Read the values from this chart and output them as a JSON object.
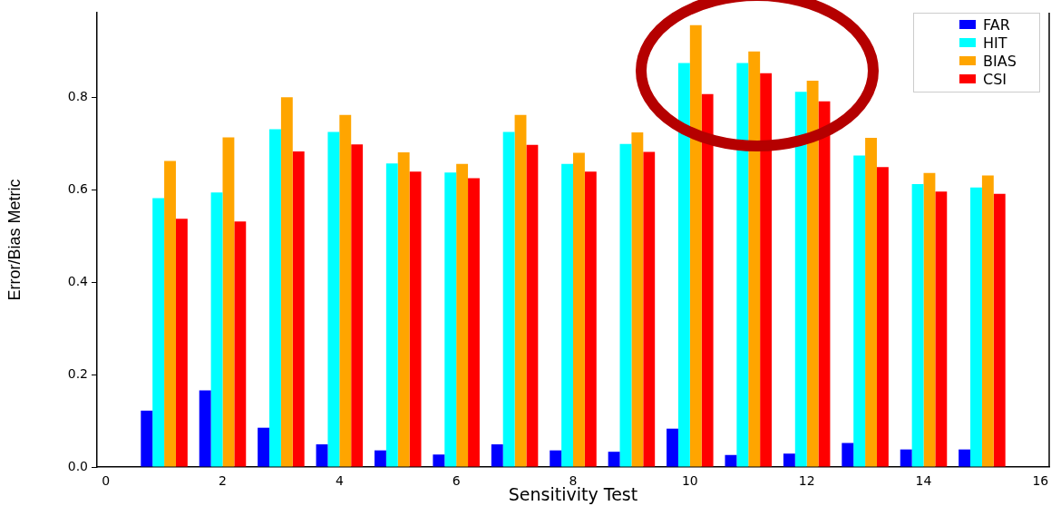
{
  "chart_data": {
    "type": "bar",
    "xlabel": "Sensitivity Test",
    "ylabel": "Error/Bias Metric",
    "x": [
      1,
      2,
      3,
      4,
      5,
      6,
      7,
      8,
      9,
      10,
      11,
      12,
      13,
      14,
      15
    ],
    "series": [
      {
        "name": "FAR",
        "color": "#0000ff",
        "values": [
          0.122,
          0.166,
          0.085,
          0.049,
          0.036,
          0.027,
          0.049,
          0.036,
          0.033,
          0.083,
          0.026,
          0.029,
          0.052,
          0.038,
          0.038
        ]
      },
      {
        "name": "HIT",
        "color": "#00ffff",
        "values": [
          0.582,
          0.594,
          0.731,
          0.725,
          0.657,
          0.637,
          0.725,
          0.656,
          0.699,
          0.874,
          0.874,
          0.812,
          0.674,
          0.612,
          0.605
        ]
      },
      {
        "name": "BIAS",
        "color": "#ffa500",
        "values": [
          0.662,
          0.713,
          0.8,
          0.762,
          0.681,
          0.656,
          0.762,
          0.68,
          0.724,
          0.956,
          0.899,
          0.836,
          0.712,
          0.636,
          0.631
        ]
      },
      {
        "name": "CSI",
        "color": "#ff0000",
        "values": [
          0.537,
          0.531,
          0.683,
          0.698,
          0.639,
          0.625,
          0.697,
          0.639,
          0.682,
          0.807,
          0.852,
          0.791,
          0.649,
          0.596,
          0.591
        ]
      }
    ],
    "xlim": [
      -0.15,
      16.15
    ],
    "xticks": [
      0,
      2,
      4,
      6,
      8,
      10,
      12,
      14,
      16
    ],
    "ylim": [
      0,
      0.983
    ],
    "yticks": [
      {
        "value": 0,
        "label": "0.0"
      },
      {
        "value": 0.2,
        "label": "0.2"
      },
      {
        "value": 0.4,
        "label": "0.4"
      },
      {
        "value": 0.6,
        "label": "0.6"
      },
      {
        "value": 0.8,
        "label": "0.8"
      }
    ],
    "grid": false,
    "legend": "top right"
  }
}
